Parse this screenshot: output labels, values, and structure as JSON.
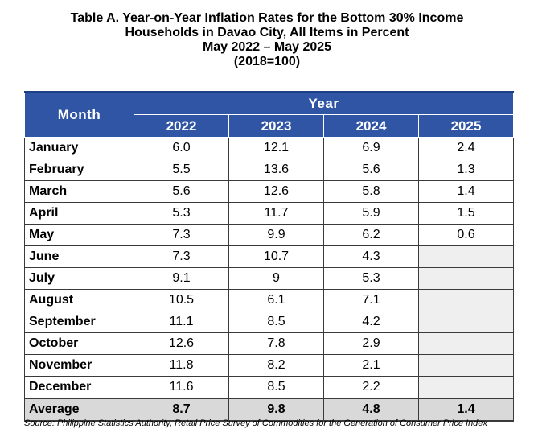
{
  "title": {
    "line1": "Table A. Year-on-Year Inflation Rates for the Bottom 30% Income",
    "line2": "Households in Davao City, All Items in Percent",
    "line3": "May 2022 – May 2025",
    "line4": "(2018=100)"
  },
  "table": {
    "month_header": "Month",
    "year_header": "Year",
    "years": [
      "2022",
      "2023",
      "2024",
      "2025"
    ],
    "rows": [
      {
        "month": "January",
        "values": [
          "6.0",
          "12.1",
          "6.9",
          "2.4"
        ]
      },
      {
        "month": "February",
        "values": [
          "5.5",
          "13.6",
          "5.6",
          "1.3"
        ]
      },
      {
        "month": "March",
        "values": [
          "5.6",
          "12.6",
          "5.8",
          "1.4"
        ]
      },
      {
        "month": "April",
        "values": [
          "5.3",
          "11.7",
          "5.9",
          "1.5"
        ]
      },
      {
        "month": "May",
        "values": [
          "7.3",
          "9.9",
          "6.2",
          "0.6"
        ]
      },
      {
        "month": "June",
        "values": [
          "7.3",
          "10.7",
          "4.3",
          ""
        ]
      },
      {
        "month": "July",
        "values": [
          "9.1",
          "9",
          "5.3",
          ""
        ]
      },
      {
        "month": "August",
        "values": [
          "10.5",
          "6.1",
          "7.1",
          ""
        ]
      },
      {
        "month": "September",
        "values": [
          "11.1",
          "8.5",
          "4.2",
          ""
        ]
      },
      {
        "month": "October",
        "values": [
          "12.6",
          "7.8",
          "2.9",
          ""
        ]
      },
      {
        "month": "November",
        "values": [
          "11.8",
          "8.2",
          "2.1",
          ""
        ]
      },
      {
        "month": "December",
        "values": [
          "11.6",
          "8.5",
          "2.2",
          ""
        ]
      }
    ],
    "average": {
      "label": "Average",
      "values": [
        "8.7",
        "9.8",
        "4.8",
        "1.4"
      ]
    }
  },
  "source": "Source: Philippine Statistics Authority, Retail Price Survey of Commodities for the Generation of Consumer Price Index",
  "colors": {
    "header_bg": "#2f55a4",
    "header_text": "#ffffff",
    "average_bg": "#d9d9d9",
    "empty_cell_bg": "#efefef"
  }
}
